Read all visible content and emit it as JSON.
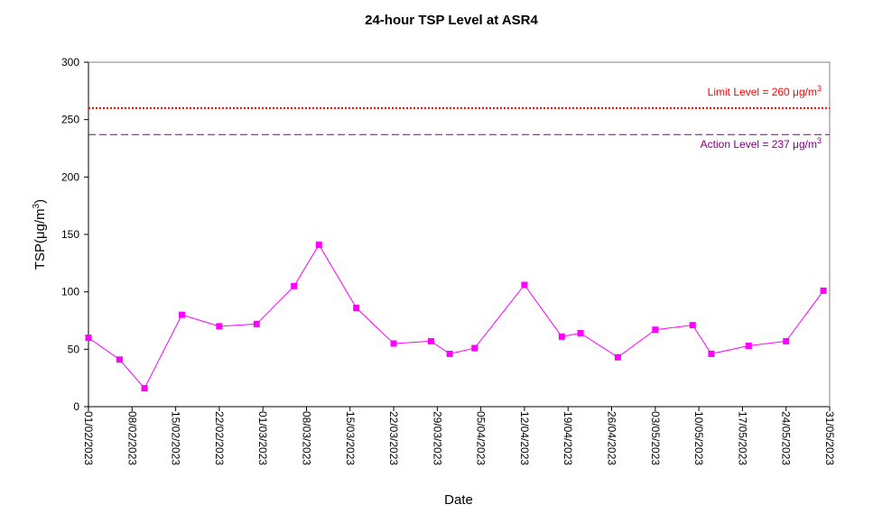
{
  "chart_data": {
    "type": "line",
    "title": "24-hour TSP Level at ASR4",
    "xlabel": "Date",
    "ylabel": "TSP(μg/m",
    "ylabel_sup": "3",
    "ylabel_close": ")",
    "ylim": [
      0,
      300
    ],
    "yticks": [
      0,
      50,
      100,
      150,
      200,
      250,
      300
    ],
    "xlim": [
      "01/02/2023",
      "31/05/2023"
    ],
    "xticks": [
      "01/02/2023",
      "08/02/2023",
      "15/02/2023",
      "22/02/2023",
      "01/03/2023",
      "08/03/2023",
      "15/03/2023",
      "22/03/2023",
      "29/03/2023",
      "05/04/2023",
      "12/04/2023",
      "19/04/2023",
      "26/04/2023",
      "03/05/2023",
      "10/05/2023",
      "17/05/2023",
      "24/05/2023",
      "31/05/2023"
    ],
    "grid": false,
    "series": [
      {
        "color": "#ff00ff",
        "points": [
          {
            "x": "01/02/2023",
            "y": 60
          },
          {
            "x": "06/02/2023",
            "y": 41
          },
          {
            "x": "10/02/2023",
            "y": 16
          },
          {
            "x": "16/02/2023",
            "y": 80
          },
          {
            "x": "22/02/2023",
            "y": 70
          },
          {
            "x": "28/02/2023",
            "y": 72
          },
          {
            "x": "06/03/2023",
            "y": 105
          },
          {
            "x": "10/03/2023",
            "y": 141
          },
          {
            "x": "16/03/2023",
            "y": 86
          },
          {
            "x": "22/03/2023",
            "y": 55
          },
          {
            "x": "28/03/2023",
            "y": 57
          },
          {
            "x": "31/03/2023",
            "y": 46
          },
          {
            "x": "04/04/2023",
            "y": 51
          },
          {
            "x": "12/04/2023",
            "y": 106
          },
          {
            "x": "18/04/2023",
            "y": 61
          },
          {
            "x": "21/04/2023",
            "y": 64
          },
          {
            "x": "27/04/2023",
            "y": 43
          },
          {
            "x": "03/05/2023",
            "y": 67
          },
          {
            "x": "09/05/2023",
            "y": 71
          },
          {
            "x": "12/05/2023",
            "y": 46
          },
          {
            "x": "18/05/2023",
            "y": 53
          },
          {
            "x": "24/05/2023",
            "y": 57
          },
          {
            "x": "30/05/2023",
            "y": 101
          }
        ]
      }
    ],
    "reference_lines": [
      {
        "label_prefix": "Limit Level  = 260 ",
        "label_unit": "μg/m",
        "label_sup": "3",
        "value": 260,
        "color": "#ff0000",
        "style": "dotted"
      },
      {
        "label_prefix": "Action Level  = 237 ",
        "label_unit": "μg/m",
        "label_sup": "3",
        "value": 237,
        "color": "#800080",
        "style": "dashed"
      }
    ]
  }
}
